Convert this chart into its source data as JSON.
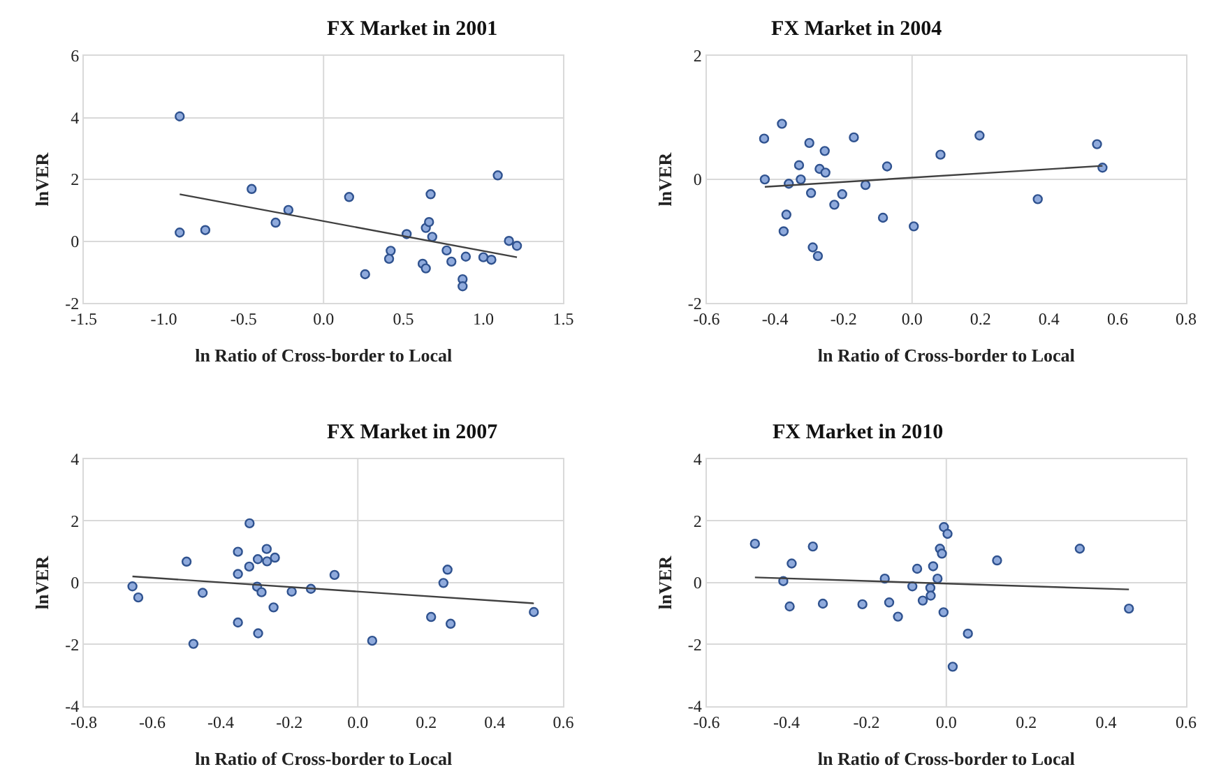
{
  "chart_data": [
    {
      "type": "scatter",
      "title": "FX Market in 2001",
      "xlabel": "ln Ratio of Cross-border to Local",
      "ylabel": "lnVER",
      "xlim": [
        -1.5,
        1.5
      ],
      "xticks": [
        {
          "value": -1.5,
          "label": "-1.5"
        },
        {
          "value": -1,
          "label": "-1.0"
        },
        {
          "value": -0.5,
          "label": "-0.5"
        },
        {
          "value": 0,
          "label": "0.0"
        },
        {
          "value": 0.5,
          "label": "0.5"
        },
        {
          "value": 1,
          "label": "1.0"
        },
        {
          "value": 1.5,
          "label": "1.5"
        }
      ],
      "ylim": [
        -2,
        6
      ],
      "yticks": [
        -2,
        0,
        2,
        4,
        6
      ],
      "grid": "y",
      "marker": "circle",
      "ref_lines": [
        {
          "axis": "x",
          "value": 0,
          "color": "#d9d9d9"
        }
      ],
      "series": [
        {
          "color": "#8faadc",
          "x": [
            -0.9,
            -0.9,
            -0.74,
            -0.45,
            -0.3,
            -0.22,
            0.16,
            0.26,
            0.42,
            0.41,
            0.52,
            0.62,
            0.64,
            0.64,
            0.66,
            0.67,
            0.68,
            0.77,
            0.8,
            0.87,
            0.87,
            0.89,
            1.0,
            1.05,
            1.09,
            1.16,
            1.21
          ],
          "values": [
            4.04,
            0.28,
            0.36,
            1.69,
            0.6,
            1.01,
            1.43,
            -1.07,
            -0.31,
            -0.57,
            0.23,
            -0.73,
            -0.88,
            0.43,
            0.62,
            1.52,
            0.14,
            -0.3,
            -0.66,
            -1.23,
            -1.46,
            -0.5,
            -0.52,
            -0.6,
            2.13,
            0.01,
            -0.15
          ]
        },
        {
          "type": "line",
          "marker": "none",
          "color": "#404040",
          "x": [
            -0.9,
            1.21
          ],
          "values": [
            1.52,
            -0.52
          ]
        }
      ]
    },
    {
      "type": "scatter",
      "title": "FX Market in 2004",
      "xlabel": "ln Ratio of Cross-border to Local",
      "ylabel": "lnVER",
      "xlim": [
        -0.6,
        0.8
      ],
      "xticks": [
        {
          "value": -0.6,
          "label": "-0.6"
        },
        {
          "value": -0.4,
          "label": "-0.4"
        },
        {
          "value": -0.2,
          "label": "-0.2"
        },
        {
          "value": 0,
          "label": "0.0"
        },
        {
          "value": 0.2,
          "label": "0.2"
        },
        {
          "value": 0.4,
          "label": "0.4"
        },
        {
          "value": 0.6,
          "label": "0.6"
        },
        {
          "value": 0.8,
          "label": "0.8"
        }
      ],
      "ylim": [
        -2,
        2
      ],
      "yticks": [
        -2,
        0,
        2
      ],
      "grid": "y",
      "marker": "circle",
      "ref_lines": [
        {
          "axis": "x",
          "value": 0,
          "color": "#d9d9d9"
        }
      ],
      "series": [
        {
          "color": "#8faadc",
          "x": [
            -0.432,
            -0.43,
            -0.38,
            -0.36,
            -0.367,
            -0.375,
            -0.33,
            -0.325,
            -0.3,
            -0.295,
            -0.29,
            -0.275,
            -0.27,
            -0.253,
            -0.255,
            -0.227,
            -0.204,
            -0.17,
            -0.136,
            -0.085,
            -0.073,
            0.005,
            0.083,
            0.197,
            0.367,
            0.54,
            0.556
          ],
          "values": [
            0.66,
            0.0,
            0.9,
            -0.07,
            -0.57,
            -0.84,
            0.23,
            0.0,
            0.59,
            -0.22,
            -1.1,
            -1.24,
            0.17,
            0.11,
            0.46,
            -0.41,
            -0.24,
            0.68,
            -0.09,
            -0.62,
            0.21,
            -0.76,
            0.4,
            0.71,
            -0.32,
            0.57,
            0.19
          ]
        },
        {
          "type": "line",
          "marker": "none",
          "color": "#404040",
          "x": [
            -0.43,
            0.556
          ],
          "values": [
            -0.12,
            0.22
          ]
        }
      ]
    },
    {
      "type": "scatter",
      "title": "FX Market in 2007",
      "xlabel": "ln Ratio of Cross-border to Local",
      "ylabel": "lnVER",
      "xlim": [
        -0.8,
        0.6
      ],
      "xticks": [
        {
          "value": -0.8,
          "label": "-0.8"
        },
        {
          "value": -0.6,
          "label": "-0.6"
        },
        {
          "value": -0.4,
          "label": "-0.4"
        },
        {
          "value": -0.2,
          "label": "-0.2"
        },
        {
          "value": 0,
          "label": "0.0"
        },
        {
          "value": 0.2,
          "label": "0.2"
        },
        {
          "value": 0.4,
          "label": "0.4"
        },
        {
          "value": 0.6,
          "label": "0.6"
        }
      ],
      "ylim": [
        -4,
        4
      ],
      "yticks": [
        -4,
        -2,
        0,
        2,
        4
      ],
      "grid": "y",
      "marker": "circle",
      "ref_lines": [
        {
          "axis": "x",
          "value": 0,
          "color": "#d9d9d9"
        }
      ],
      "series": [
        {
          "color": "#8faadc",
          "x": [
            -0.658,
            -0.641,
            -0.5,
            -0.48,
            -0.453,
            -0.35,
            -0.35,
            -0.35,
            -0.316,
            -0.317,
            -0.292,
            -0.294,
            -0.291,
            -0.281,
            -0.266,
            -0.265,
            -0.242,
            -0.246,
            -0.193,
            -0.137,
            -0.068,
            0.042,
            0.214,
            0.25,
            0.262,
            0.271,
            0.514
          ],
          "values": [
            -0.12,
            -0.48,
            0.68,
            -1.98,
            -0.33,
            1.0,
            0.28,
            -1.29,
            1.92,
            0.52,
            0.76,
            -0.13,
            -1.64,
            -0.31,
            1.09,
            0.69,
            0.81,
            -0.8,
            -0.29,
            -0.2,
            0.25,
            -1.88,
            -1.11,
            -0.01,
            0.42,
            -1.33,
            -0.95
          ]
        },
        {
          "type": "line",
          "marker": "none",
          "color": "#404040",
          "x": [
            -0.658,
            0.514
          ],
          "values": [
            0.2,
            -0.67
          ]
        }
      ]
    },
    {
      "type": "scatter",
      "title": "FX Market in 2010",
      "xlabel": "ln Ratio of Cross-border to Local",
      "ylabel": "lnVER",
      "xlim": [
        -0.6,
        0.6
      ],
      "xticks": [
        {
          "value": -0.6,
          "label": "-0.6"
        },
        {
          "value": -0.4,
          "label": "-0.4"
        },
        {
          "value": -0.2,
          "label": "-0.2"
        },
        {
          "value": 0,
          "label": "0.0"
        },
        {
          "value": 0.2,
          "label": "0.2"
        },
        {
          "value": 0.4,
          "label": "0.4"
        },
        {
          "value": 0.6,
          "label": "0.6"
        }
      ],
      "ylim": [
        -4,
        4
      ],
      "yticks": [
        -4,
        -2,
        0,
        2,
        4
      ],
      "grid": "y",
      "marker": "circle",
      "ref_lines": [
        {
          "axis": "x",
          "value": 0,
          "color": "#d9d9d9"
        }
      ],
      "series": [
        {
          "color": "#8faadc",
          "x": [
            -0.479,
            -0.408,
            -0.392,
            -0.387,
            -0.334,
            -0.309,
            -0.21,
            -0.154,
            -0.143,
            -0.121,
            -0.085,
            -0.073,
            -0.059,
            -0.04,
            -0.039,
            -0.033,
            -0.022,
            -0.016,
            -0.011,
            -0.007,
            -0.006,
            0.003,
            0.016,
            0.054,
            0.127,
            0.334,
            0.457
          ],
          "values": [
            1.26,
            0.05,
            -0.77,
            0.62,
            1.17,
            -0.68,
            -0.7,
            0.13,
            -0.64,
            -1.1,
            -0.12,
            0.45,
            -0.58,
            -0.17,
            -0.42,
            0.53,
            0.13,
            1.1,
            0.94,
            -0.96,
            1.8,
            1.58,
            -2.72,
            -1.65,
            0.72,
            1.1,
            -0.84
          ]
        },
        {
          "type": "line",
          "marker": "none",
          "color": "#404040",
          "x": [
            -0.479,
            0.457
          ],
          "values": [
            0.17,
            -0.22
          ]
        }
      ]
    }
  ]
}
